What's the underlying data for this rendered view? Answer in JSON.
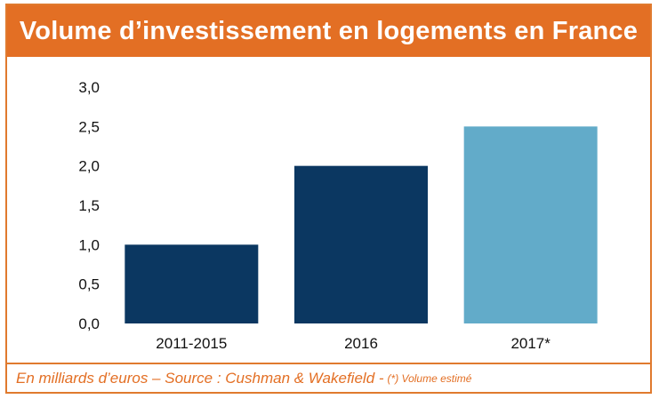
{
  "title": "Volume d’investissement en logements en France",
  "footer": {
    "source": "En milliards d’euros – Source : Cushman & Wakefield -",
    "note": "(*) Volume estimé"
  },
  "chart_data": {
    "type": "bar",
    "title": "Volume d’investissement en logements en France",
    "xlabel": "",
    "ylabel": "",
    "categories": [
      "2011-2015",
      "2016",
      "2017*"
    ],
    "values": [
      1.0,
      2.0,
      2.5
    ],
    "bar_colors": [
      "#0b3761",
      "#0b3761",
      "#62abc9"
    ],
    "ylim": [
      0,
      3.0
    ],
    "y_ticks": [
      0.0,
      0.5,
      1.0,
      1.5,
      2.0,
      2.5,
      3.0
    ],
    "y_tick_labels": [
      "0,0",
      "0,5",
      "1,0",
      "1,5",
      "2,0",
      "2,5",
      "3,0"
    ],
    "grid": false,
    "legend": "none"
  },
  "colors": {
    "accent": "#e36f24",
    "dark_bar": "#0b3761",
    "light_bar": "#62abc9"
  }
}
